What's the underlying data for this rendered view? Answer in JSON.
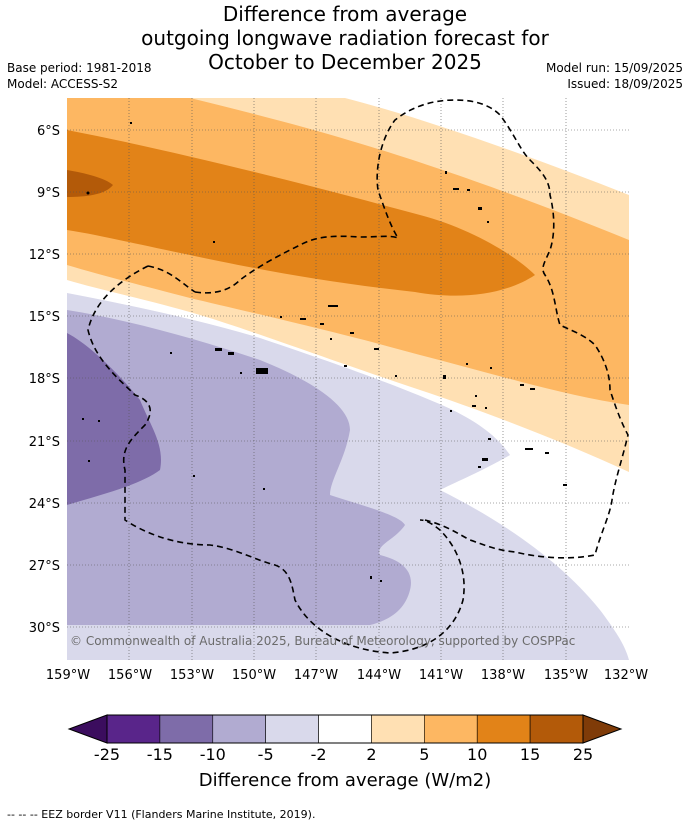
{
  "title": {
    "line1": "Difference from average",
    "line2": "outgoing longwave radiation forecast for",
    "line3": "October to December 2025"
  },
  "meta": {
    "base_period": "Base period: 1981-2018",
    "model": "Model: ACCESS-S2",
    "model_run": "Model run: 15/09/2025",
    "issued": "Issued: 18/09/2025"
  },
  "lat_labels": [
    "6°S",
    "9°S",
    "12°S",
    "15°S",
    "18°S",
    "21°S",
    "24°S",
    "27°S",
    "30°S"
  ],
  "lon_labels": [
    "159°W",
    "156°W",
    "153°W",
    "150°W",
    "147°W",
    "144°W",
    "141°W",
    "138°W",
    "135°W",
    "132°W"
  ],
  "copyright": "© Commonwealth of Australia 2025, Bureau of Meteorology, supported by COSPPac",
  "colorbar": {
    "ticks": [
      "-25",
      "-15",
      "-10",
      "-5",
      "-2",
      "2",
      "5",
      "10",
      "15",
      "25"
    ],
    "colors": [
      "#59258a",
      "#7e6ca9",
      "#b1abd1",
      "#d9d9eb",
      "#ffffff",
      "#ffe0b3",
      "#fdb762",
      "#e28318",
      "#b35a09"
    ],
    "under_color": "#3b0d5e",
    "over_color": "#7f3b08",
    "label": "Difference from average (W/m2)"
  },
  "footnote": "--  --  -- EEZ border V11 (Flanders Marine Institute, 2019)."
}
